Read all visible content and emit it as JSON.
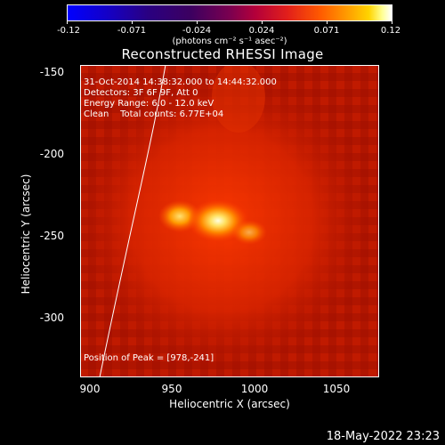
{
  "colorbar": {
    "tick_labels": [
      "-0.12",
      "-0.071",
      "-0.024",
      "0.024",
      "0.071",
      "0.12"
    ],
    "unit_label": "(photons cm⁻² s⁻¹ asec⁻²)"
  },
  "title": "Reconstructed RHESSI Image",
  "info": {
    "time_range": "31-Oct-2014 14:38:32.000 to 14:44:32.000",
    "detectors": "Detectors: 3F 6F 9F, Att 0",
    "energy_range": "Energy Range: 6.0 - 12.0 keV",
    "clean_counts": "Clean    Total counts: 6.77E+04",
    "peak_position": "Position of Peak = [978,-241]"
  },
  "axes": {
    "xlabel": "Heliocentric X (arcsec)",
    "ylabel": "Heliocentric Y (arcsec)",
    "xticks": [
      "900",
      "950",
      "1000",
      "1050"
    ],
    "yticks": [
      "-150",
      "-200",
      "-250",
      "-300"
    ]
  },
  "timestamp": "18-May-2022 23:23"
}
